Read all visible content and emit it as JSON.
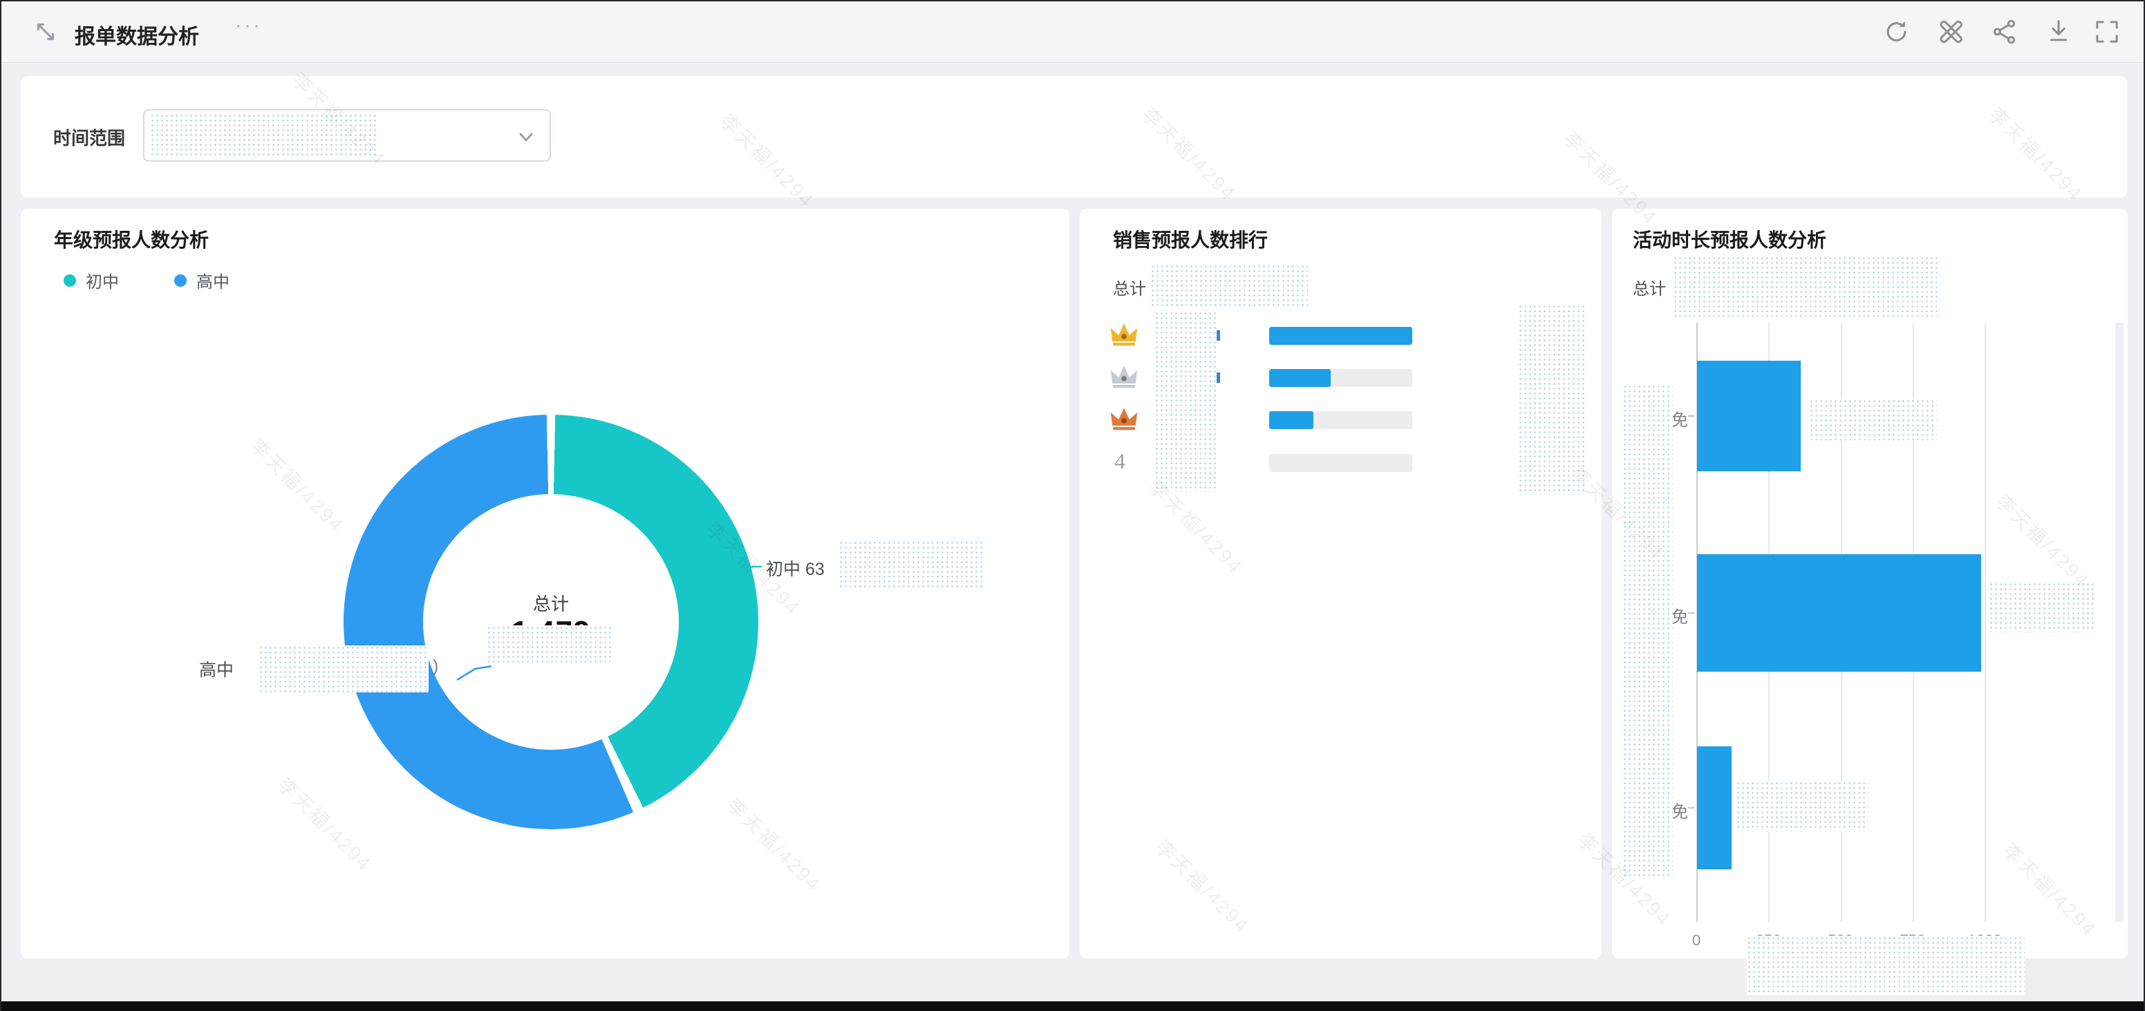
{
  "header": {
    "title": "报单数据分析",
    "more_label": "···",
    "icons": [
      {
        "name": "refresh"
      },
      {
        "name": "edit-tools"
      },
      {
        "name": "share"
      },
      {
        "name": "download"
      },
      {
        "name": "fullscreen"
      }
    ]
  },
  "filter": {
    "label": "时间范围"
  },
  "watermark": {
    "text": "李天福/4294"
  },
  "colors": {
    "teal": "#17C7C7",
    "donut_blue": "#2F9BF0",
    "bar_blue": "#1F9FE8",
    "track_gray": "#ebedef",
    "gold": "#F0B42F",
    "silver": "#C6CAD1",
    "bronze": "#E07B3C"
  },
  "panels": {
    "grade": {
      "title": "年级预报人数分析",
      "legend": [
        {
          "label": "初中",
          "color": "#17C7C7"
        },
        {
          "label": "高中",
          "color": "#2F9BF0"
        }
      ],
      "center_label": "总计",
      "center_value": "1,479",
      "callout_right": "初中  63",
      "callout_left": "高中",
      "callout_left_suffix": ")",
      "donut": {
        "teal_pct": 43,
        "blue_pct": 57
      }
    },
    "sales": {
      "title": "销售预报人数排行",
      "total_label": "总计",
      "rows": [
        {
          "rank": "1",
          "medal": "gold",
          "fill_pct": 100
        },
        {
          "rank": "2",
          "medal": "silver",
          "fill_pct": 43
        },
        {
          "rank": "3",
          "medal": "bronze",
          "fill_pct": 31
        },
        {
          "rank": "4",
          "medal": "none",
          "fill_pct": 0
        }
      ]
    },
    "duration": {
      "title": "活动时长预报人数分析",
      "total_label": "总计",
      "ylabels_visible": [
        "免",
        "免",
        "免"
      ],
      "values": [
        360,
        985,
        120
      ],
      "xmax": 1000,
      "xticks": [
        "0",
        "250",
        "500",
        "750",
        "1000"
      ]
    }
  },
  "chart_data": [
    {
      "type": "pie",
      "subtype": "donut",
      "title": "年级预报人数分析",
      "labels": [
        "初中",
        "高中"
      ],
      "percents_est": [
        43,
        57
      ],
      "visible_values": [
        "63 (partially redacted)",
        "redacted"
      ],
      "total_label": "总计",
      "total_visible": "1,479",
      "colors": [
        "#17C7C7",
        "#2F9BF0"
      ],
      "legend_position": "top-left"
    },
    {
      "type": "bar",
      "subtype": "ranking-list",
      "title": "销售预报人数排行",
      "total_label": "总计",
      "categories": [
        "rank1",
        "rank2",
        "rank3",
        "rank4"
      ],
      "fill_pct": [
        100,
        43,
        31,
        0
      ],
      "bar_color": "#1F9FE8"
    },
    {
      "type": "bar",
      "subtype": "horizontal",
      "title": "活动时长预报人数分析",
      "categories_visible": [
        "免…",
        "免…",
        "免…"
      ],
      "values": [
        360,
        985,
        120
      ],
      "xlabel": "",
      "ylabel": "",
      "xlim": [
        0,
        1000
      ],
      "xticks": [
        0,
        250,
        500,
        750,
        1000
      ],
      "grid": true,
      "bar_color": "#1F9FE8"
    }
  ]
}
